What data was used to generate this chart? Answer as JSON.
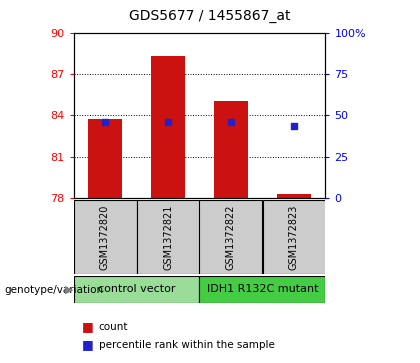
{
  "title": "GDS5677 / 1455867_at",
  "samples": [
    "GSM1372820",
    "GSM1372821",
    "GSM1372822",
    "GSM1372823"
  ],
  "bar_tops": [
    83.7,
    88.3,
    85.0,
    78.3
  ],
  "bar_base": 78.0,
  "blue_y": [
    83.5,
    83.5,
    83.5,
    83.2
  ],
  "ylim": [
    78,
    90
  ],
  "yticks_left": [
    78,
    81,
    84,
    87,
    90
  ],
  "yticks_right": [
    0,
    25,
    50,
    75,
    100
  ],
  "ytick_right_labels": [
    "0",
    "25",
    "50",
    "75",
    "100%"
  ],
  "bar_color": "#cc1111",
  "blue_color": "#2222cc",
  "bg_color": "#ffffff",
  "plot_bg": "#ffffff",
  "group1_label": "control vector",
  "group2_label": "IDH1 R132C mutant",
  "group1_color": "#99dd99",
  "group2_color": "#44cc44",
  "genotype_label": "genotype/variation",
  "legend_count": "count",
  "legend_percentile": "percentile rank within the sample",
  "bar_width": 0.55,
  "blue_sq_size": 18,
  "sample_box_color": "#cccccc",
  "title_fontsize": 10,
  "tick_fontsize": 8,
  "sample_fontsize": 7,
  "group_fontsize": 8,
  "legend_fontsize": 7.5
}
